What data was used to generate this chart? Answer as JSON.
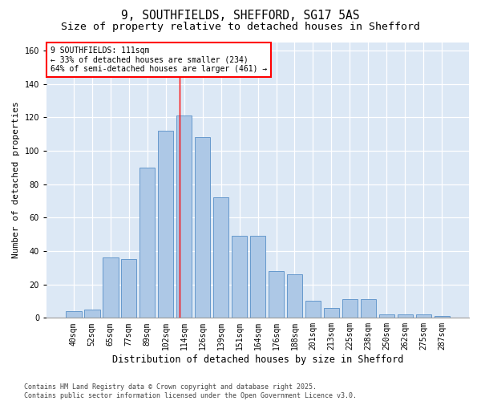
{
  "title1": "9, SOUTHFIELDS, SHEFFORD, SG17 5AS",
  "title2": "Size of property relative to detached houses in Shefford",
  "xlabel": "Distribution of detached houses by size in Shefford",
  "ylabel": "Number of detached properties",
  "categories": [
    "40sqm",
    "52sqm",
    "65sqm",
    "77sqm",
    "89sqm",
    "102sqm",
    "114sqm",
    "126sqm",
    "139sqm",
    "151sqm",
    "164sqm",
    "176sqm",
    "188sqm",
    "201sqm",
    "213sqm",
    "225sqm",
    "238sqm",
    "250sqm",
    "262sqm",
    "275sqm",
    "287sqm"
  ],
  "values": [
    4,
    5,
    36,
    35,
    90,
    112,
    121,
    108,
    72,
    49,
    49,
    28,
    26,
    10,
    6,
    11,
    11,
    2,
    2,
    2,
    1
  ],
  "bar_color": "#adc8e6",
  "bar_edge_color": "#6699cc",
  "background_color": "#dce8f5",
  "annotation_line_bin": 5.75,
  "annotation_text_line1": "9 SOUTHFIELDS: 111sqm",
  "annotation_text_line2": "← 33% of detached houses are smaller (234)",
  "annotation_text_line3": "64% of semi-detached houses are larger (461) →",
  "footer_text": "Contains HM Land Registry data © Crown copyright and database right 2025.\nContains public sector information licensed under the Open Government Licence v3.0.",
  "ylim": [
    0,
    165
  ],
  "yticks": [
    0,
    20,
    40,
    60,
    80,
    100,
    120,
    140,
    160
  ],
  "title1_fontsize": 10.5,
  "title2_fontsize": 9.5,
  "xlabel_fontsize": 8.5,
  "ylabel_fontsize": 8,
  "tick_fontsize": 7,
  "annotation_fontsize": 7,
  "footer_fontsize": 6
}
